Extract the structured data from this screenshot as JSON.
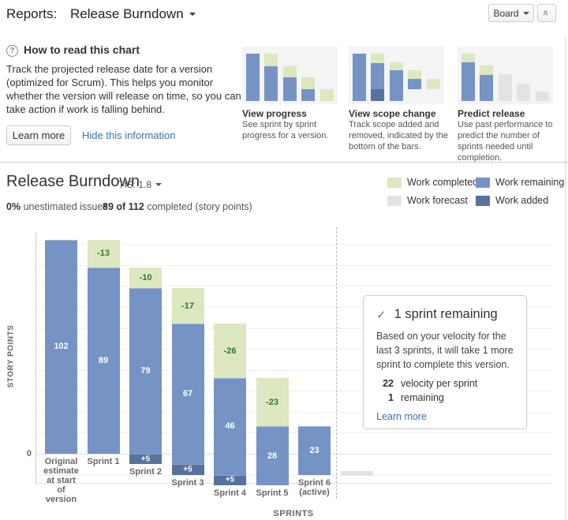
{
  "header": {
    "reports_label": "Reports:",
    "report_name": "Release Burndown",
    "board_button": "Board",
    "collapse_icon": "«"
  },
  "how_to": {
    "help_glyph": "?",
    "title": "How to read this chart",
    "description": "Track the projected release date for a version (optimized for Scrum). This helps you monitor whether the version will release on time, so you can take action if work is falling behind.",
    "learn_more": "Learn more",
    "hide_link": "Hide this information",
    "tips": [
      {
        "title": "View progress",
        "desc": "See sprint by sprint progress for a version.",
        "bars": [
          {
            "lift": 0,
            "segments": [
              {
                "kind": "remaining",
                "h": 60
              }
            ]
          },
          {
            "lift": 0,
            "segments": [
              {
                "kind": "remaining",
                "h": 44
              },
              {
                "kind": "completed",
                "h": 16
              }
            ]
          },
          {
            "lift": 0,
            "segments": [
              {
                "kind": "remaining",
                "h": 30
              },
              {
                "kind": "completed",
                "h": 14
              }
            ]
          },
          {
            "lift": 0,
            "segments": [
              {
                "kind": "remaining",
                "h": 15
              },
              {
                "kind": "completed",
                "h": 15
              }
            ]
          },
          {
            "lift": 0,
            "segments": [
              {
                "kind": "completed",
                "h": 15
              }
            ]
          }
        ]
      },
      {
        "title": "View scope change",
        "desc": "Track scope added and removed, indicated by the bottom of the bars.",
        "bars": [
          {
            "lift": 0,
            "segments": [
              {
                "kind": "remaining",
                "h": 60
              }
            ]
          },
          {
            "lift": 0,
            "segments": [
              {
                "kind": "added",
                "h": 15
              },
              {
                "kind": "remaining",
                "h": 33
              },
              {
                "kind": "completed",
                "h": 12
              }
            ]
          },
          {
            "lift": 0,
            "segments": [
              {
                "kind": "remaining",
                "h": 39
              },
              {
                "kind": "completed",
                "h": 10
              }
            ]
          },
          {
            "lift": 15,
            "segments": [
              {
                "kind": "remaining",
                "h": 13
              },
              {
                "kind": "completed",
                "h": 11
              }
            ]
          },
          {
            "lift": 15,
            "segments": [
              {
                "kind": "completed",
                "h": 13
              }
            ]
          }
        ]
      },
      {
        "title": "Predict release",
        "desc": "Use past performance to predict the number of sprints needed until completion.",
        "bars": [
          {
            "lift": 0,
            "segments": [
              {
                "kind": "remaining",
                "h": 49
              },
              {
                "kind": "completed",
                "h": 11
              }
            ]
          },
          {
            "lift": 0,
            "segments": [
              {
                "kind": "remaining",
                "h": 33
              },
              {
                "kind": "completed",
                "h": 12
              }
            ]
          },
          {
            "lift": 0,
            "segments": [
              {
                "kind": "forecast",
                "h": 34
              }
            ]
          },
          {
            "lift": 0,
            "segments": [
              {
                "kind": "forecast",
                "h": 22
              }
            ]
          },
          {
            "lift": 0,
            "segments": [
              {
                "kind": "forecast",
                "h": 12
              }
            ]
          }
        ]
      }
    ]
  },
  "report": {
    "title": "Release Burndown",
    "tis": "TIS: 1.8",
    "unestimated_value": "0%",
    "unestimated_label": "unestimated issues",
    "completed_value": "89 of 112",
    "completed_label": "completed (story points)"
  },
  "legend": [
    {
      "label": "Work completed",
      "kind": "completed"
    },
    {
      "label": "Work remaining",
      "kind": "remaining"
    },
    {
      "label": "Work forecast",
      "kind": "forecast"
    },
    {
      "label": "Work added",
      "kind": "added"
    }
  ],
  "colors": {
    "completed": "#dde7c0",
    "remaining": "#7593c5",
    "added": "#55739c",
    "forecast": "#e3e3e3",
    "completed_text": "#2d7a2d",
    "bar_value_text": "#ffffff",
    "link": "#3572b0",
    "gridline": "#efefef",
    "zero_line": "#dddddd",
    "plot_bottom_line": "#e2e2e2"
  },
  "chart_data": {
    "type": "bar",
    "title": "Release Burndown",
    "xlabel": "SPRINTS",
    "ylabel": "STORY POINTS",
    "ylim": [
      -15,
      105
    ],
    "yticks_shown": [
      "0"
    ],
    "gridline_values": [
      100,
      90,
      80,
      70,
      60,
      50,
      40,
      30,
      20,
      10,
      0,
      -10
    ],
    "grid": true,
    "categories": [
      "Original estimate at start of version",
      "Sprint 1",
      "Sprint 2",
      "Sprint 3",
      "Sprint 4",
      "Sprint 5",
      "Sprint 6 (active)"
    ],
    "bars": [
      {
        "category": "Original estimate at start of version",
        "label_lines": [
          "Original",
          "estimate",
          "at start",
          "of",
          "version"
        ],
        "segments": [
          {
            "kind": "remaining",
            "from": 0,
            "to": 102,
            "label": "102"
          }
        ]
      },
      {
        "category": "Sprint 1",
        "label_lines": [
          "Sprint 1"
        ],
        "segments": [
          {
            "kind": "remaining",
            "from": 0,
            "to": 89,
            "label": "89"
          },
          {
            "kind": "completed",
            "from": 89,
            "to": 102,
            "label": "-13"
          }
        ]
      },
      {
        "category": "Sprint 2",
        "label_lines": [
          "Sprint 2"
        ],
        "segments": [
          {
            "kind": "added",
            "from": -5,
            "to": 0,
            "label": "+5"
          },
          {
            "kind": "remaining",
            "from": 0,
            "to": 79,
            "label": "79"
          },
          {
            "kind": "completed",
            "from": 79,
            "to": 89,
            "label": "-10"
          }
        ]
      },
      {
        "category": "Sprint 3",
        "label_lines": [
          "Sprint 3"
        ],
        "segments": [
          {
            "kind": "added",
            "from": -10,
            "to": -5,
            "label": "+5"
          },
          {
            "kind": "remaining",
            "from": -5,
            "to": 62,
            "label": "67"
          },
          {
            "kind": "completed",
            "from": 62,
            "to": 79,
            "label": "-17"
          }
        ]
      },
      {
        "category": "Sprint 4",
        "label_lines": [
          "Sprint 4"
        ],
        "segments": [
          {
            "kind": "added",
            "from": -15,
            "to": -10,
            "label": "+5"
          },
          {
            "kind": "remaining",
            "from": -10,
            "to": 36,
            "label": "46"
          },
          {
            "kind": "completed",
            "from": 36,
            "to": 62,
            "label": "-26"
          }
        ]
      },
      {
        "category": "Sprint 5",
        "label_lines": [
          "Sprint 5"
        ],
        "segments": [
          {
            "kind": "remaining",
            "from": -15,
            "to": 13,
            "label": "28"
          },
          {
            "kind": "completed",
            "from": 13,
            "to": 36,
            "label": "-23"
          }
        ]
      },
      {
        "category": "Sprint 6 (active)",
        "label_lines": [
          "Sprint 6",
          "(active)"
        ],
        "segments": [
          {
            "kind": "remaining",
            "from": -10,
            "to": 13,
            "label": "23"
          }
        ]
      }
    ],
    "forecast_bar": {
      "kind": "forecast",
      "from": -10.5,
      "to": -8.2
    },
    "legend_position": "top-right"
  },
  "info_box": {
    "check": "✓",
    "title": "1 sprint remaining",
    "body": "Based on your velocity for the last 3 sprints, it will take 1 more sprint to complete this version.",
    "stats": [
      {
        "value": "22",
        "label": "velocity per sprint"
      },
      {
        "value": "1",
        "label": "remaining"
      }
    ],
    "link": "Learn more"
  }
}
